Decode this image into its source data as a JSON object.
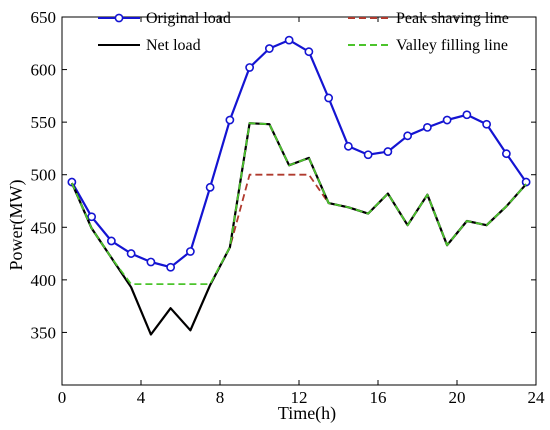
{
  "chart_data": {
    "type": "line",
    "xlabel": "Time(h)",
    "ylabel": "Power(MW)",
    "xlim": [
      0,
      24
    ],
    "ylim": [
      300,
      650
    ],
    "x_ticks": [
      0,
      4,
      8,
      12,
      16,
      20,
      24
    ],
    "y_ticks": [
      350,
      400,
      450,
      500,
      550,
      600,
      650
    ],
    "x_tick_labels": [
      "0",
      "4",
      "8",
      "12",
      "16",
      "20",
      "24"
    ],
    "y_tick_labels": [
      "350",
      "400",
      "450",
      "500",
      "550",
      "600",
      "650"
    ],
    "grid": false,
    "legend_placement": "top",
    "series": [
      {
        "name": "Original load",
        "color": "#1414d2",
        "style": "solid-with-circle-markers",
        "x": [
          0.5,
          1.5,
          2.5,
          3.5,
          4.5,
          5.5,
          6.5,
          7.5,
          8.5,
          9.5,
          10.5,
          11.5,
          12.5,
          13.5,
          14.5,
          15.5,
          16.5,
          17.5,
          18.5,
          19.5,
          20.5,
          21.5,
          22.5,
          23.5
        ],
        "values": [
          493,
          460,
          437,
          425,
          417,
          412,
          427,
          488,
          552,
          602,
          620,
          628,
          617,
          573,
          527,
          519,
          522,
          537,
          545,
          552,
          557,
          548,
          520,
          493
        ]
      },
      {
        "name": "Net load",
        "color": "#000000",
        "style": "solid",
        "x": [
          0.5,
          1.5,
          2.5,
          3.5,
          4.5,
          5.5,
          6.5,
          7.5,
          8.5,
          9.5,
          10.5,
          11.5,
          12.5,
          13.5,
          14.5,
          15.5,
          16.5,
          17.5,
          18.5,
          19.5,
          20.5,
          21.5,
          22.5,
          23.5
        ],
        "values": [
          492,
          449,
          421,
          393,
          348,
          373,
          352,
          395,
          431,
          549,
          548,
          509,
          516,
          473,
          469,
          463,
          482,
          452,
          481,
          433,
          456,
          452,
          470,
          491
        ]
      },
      {
        "name": "Peak shaving line",
        "color": "#b03a2e",
        "style": "dashed",
        "x": [
          0.5,
          1.5,
          2.5,
          3.5,
          4.5,
          5.5,
          6.5,
          7.5,
          8.5,
          9.5,
          10.5,
          11.5,
          12.5,
          13.5,
          14.5,
          15.5,
          16.5,
          17.5,
          18.5,
          19.5,
          20.5,
          21.5,
          22.5,
          23.5
        ],
        "values": [
          492,
          449,
          421,
          393,
          348,
          373,
          352,
          395,
          431,
          500,
          500,
          500,
          500,
          473,
          469,
          463,
          482,
          452,
          481,
          433,
          456,
          452,
          470,
          491
        ]
      },
      {
        "name": "Valley filling line",
        "color": "#4cc42c",
        "style": "dashed",
        "x": [
          0.5,
          1.5,
          2.5,
          3.5,
          4.5,
          5.5,
          6.5,
          7.5,
          8.5,
          9.5,
          10.5,
          11.5,
          12.5,
          13.5,
          14.5,
          15.5,
          16.5,
          17.5,
          18.5,
          19.5,
          20.5,
          21.5,
          22.5,
          23.5
        ],
        "values": [
          492,
          449,
          421,
          396,
          396,
          396,
          396,
          396,
          431,
          549,
          548,
          509,
          516,
          473,
          469,
          463,
          482,
          452,
          481,
          433,
          456,
          452,
          470,
          491
        ]
      }
    ]
  }
}
